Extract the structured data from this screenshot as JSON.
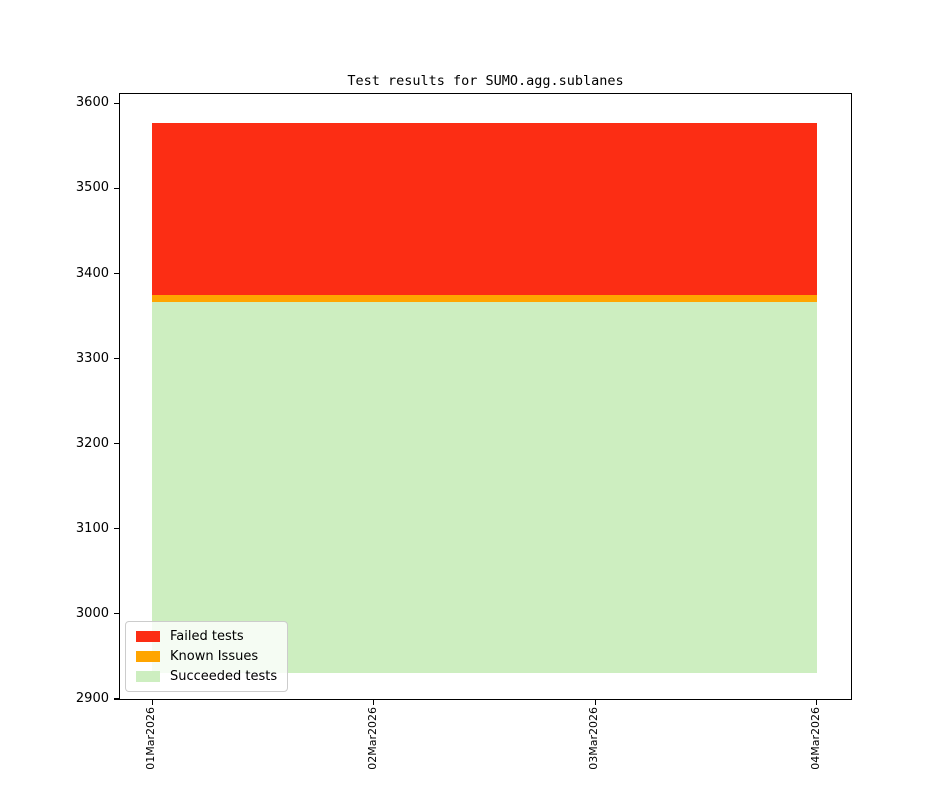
{
  "figure": {
    "background": "#ffffff"
  },
  "chart_data": {
    "type": "area",
    "variant": "stacked",
    "title": "Test results for SUMO.agg.sublanes",
    "x_categories": [
      "01Mar2026",
      "02Mar2026",
      "03Mar2026",
      "04Mar2026"
    ],
    "x_positions_days": [
      0,
      1,
      2,
      3
    ],
    "area_x_range_days": [
      0,
      3
    ],
    "xlim_days": [
      -0.145,
      3.155
    ],
    "ylim": [
      2900,
      3611
    ],
    "yticks": [
      2900,
      3000,
      3100,
      3200,
      3300,
      3400,
      3500,
      3600
    ],
    "grid": false,
    "legend_position": "lower-left",
    "series": [
      {
        "name": "Failed tests",
        "color": "#fc2d14",
        "band_top": 3577,
        "band_bottom": 3375,
        "values_per_day": [
          202,
          202,
          202,
          202
        ]
      },
      {
        "name": "Known Issues",
        "color": "#ffa500",
        "band_top": 3375,
        "band_bottom": 3366,
        "values_per_day": [
          9,
          9,
          9,
          9
        ]
      },
      {
        "name": "Succeeded tests",
        "color": "#cdeec0",
        "band_top": 3366,
        "band_bottom": 2930,
        "values_per_day": [
          436,
          436,
          436,
          436
        ]
      }
    ],
    "stack_totals": [
      3577,
      3577,
      3577,
      3577
    ]
  },
  "axes": {
    "frame_color": "#000000",
    "tick_color": "#000000",
    "label_color": "#000000"
  },
  "legend": {
    "border_color": "#cccccc",
    "background": "rgba(255,255,255,0.8)"
  }
}
